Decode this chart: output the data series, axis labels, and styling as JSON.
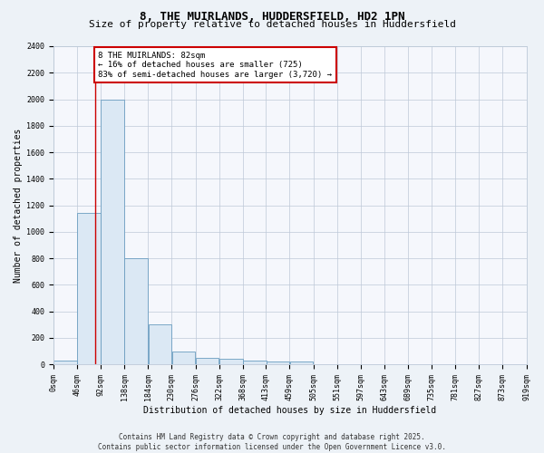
{
  "title": "8, THE MUIRLANDS, HUDDERSFIELD, HD2 1PN",
  "subtitle": "Size of property relative to detached houses in Huddersfield",
  "xlabel": "Distribution of detached houses by size in Huddersfield",
  "ylabel": "Number of detached properties",
  "bin_edges": [
    0,
    46,
    92,
    138,
    184,
    230,
    276,
    322,
    368,
    413,
    459,
    505,
    551,
    597,
    643,
    689,
    735,
    781,
    827,
    873,
    919
  ],
  "bar_heights": [
    28,
    1140,
    2000,
    800,
    300,
    100,
    50,
    40,
    28,
    20,
    20,
    0,
    0,
    0,
    0,
    0,
    0,
    0,
    0,
    0
  ],
  "bar_color": "#dbe8f4",
  "bar_edge_color": "#6a9dc0",
  "red_line_x": 82,
  "ylim": [
    0,
    2400
  ],
  "yticks": [
    0,
    200,
    400,
    600,
    800,
    1000,
    1200,
    1400,
    1600,
    1800,
    2000,
    2200,
    2400
  ],
  "tick_labels": [
    "0sqm",
    "46sqm",
    "92sqm",
    "138sqm",
    "184sqm",
    "230sqm",
    "276sqm",
    "322sqm",
    "368sqm",
    "413sqm",
    "459sqm",
    "505sqm",
    "551sqm",
    "597sqm",
    "643sqm",
    "689sqm",
    "735sqm",
    "781sqm",
    "827sqm",
    "873sqm",
    "919sqm"
  ],
  "annotation_text": "8 THE MUIRLANDS: 82sqm\n← 16% of detached houses are smaller (725)\n83% of semi-detached houses are larger (3,720) →",
  "annotation_box_facecolor": "#ffffff",
  "annotation_box_edgecolor": "#cc0000",
  "footer_line1": "Contains HM Land Registry data © Crown copyright and database right 2025.",
  "footer_line2": "Contains public sector information licensed under the Open Government Licence v3.0.",
  "bg_color": "#edf2f7",
  "plot_bg_color": "#f5f7fc",
  "grid_color": "#bdc9d8",
  "title_fontsize": 9,
  "subtitle_fontsize": 8,
  "tick_fontsize": 6,
  "label_fontsize": 7,
  "annotation_fontsize": 6.5,
  "footer_fontsize": 5.5
}
